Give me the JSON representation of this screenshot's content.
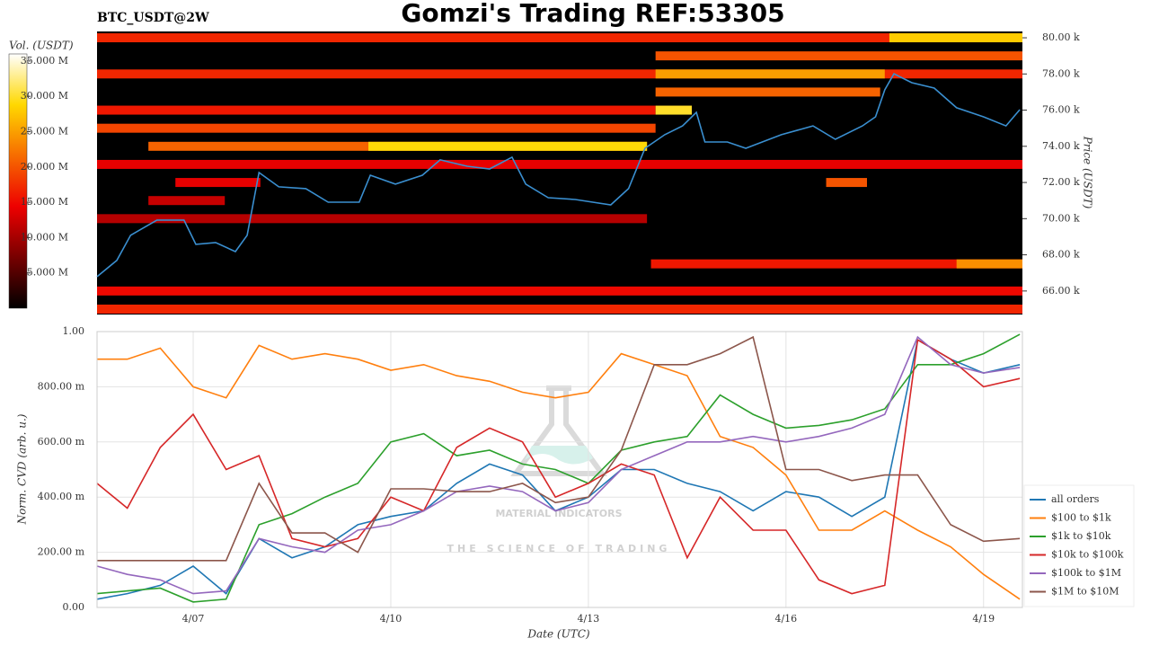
{
  "chart_data": [
    {
      "type": "heatmap",
      "title": "Gomzi's Trading REF:53305",
      "subtitle": "BTC_USDT@2W",
      "y_label": "Price (USDT)",
      "colorbar_label": "Vol. (USDT)",
      "xlim": [
        5.54,
        19.59
      ],
      "ylim": [
        64.7,
        80.35
      ],
      "yticks": [
        {
          "value": 66,
          "label": "66.00 k"
        },
        {
          "value": 68,
          "label": "68.00 k"
        },
        {
          "value": 70,
          "label": "70.00 k"
        },
        {
          "value": 72,
          "label": "72.00 k"
        },
        {
          "value": 74,
          "label": "74.00 k"
        },
        {
          "value": 76,
          "label": "76.00 k"
        },
        {
          "value": 78,
          "label": "78.00 k"
        },
        {
          "value": 80,
          "label": "80.00 k"
        }
      ],
      "clim": [
        0,
        36
      ],
      "cticks": [
        {
          "value": 5,
          "label": "5.000 M"
        },
        {
          "value": 10,
          "label": "10.000 M"
        },
        {
          "value": 15,
          "label": "15.000 M"
        },
        {
          "value": 20,
          "label": "20.000 M"
        },
        {
          "value": 25,
          "label": "25.000 M"
        },
        {
          "value": 30,
          "label": "30.000 M"
        },
        {
          "value": 35,
          "label": "35.000 M"
        }
      ],
      "bands": [
        {
          "price": 80,
          "x0": 5.54,
          "x1": 19.59,
          "value": 17
        },
        {
          "price": 80,
          "x0": 17.57,
          "x1": 19.59,
          "value": 28
        },
        {
          "price": 79,
          "x0": 14.02,
          "x1": 19.59,
          "value": 20
        },
        {
          "price": 78,
          "x0": 5.54,
          "x1": 19.59,
          "value": 17
        },
        {
          "price": 78,
          "x0": 14.02,
          "x1": 17.5,
          "value": 25
        },
        {
          "price": 77,
          "x0": 14.02,
          "x1": 17.43,
          "value": 21
        },
        {
          "price": 76,
          "x0": 5.54,
          "x1": 14.02,
          "value": 16
        },
        {
          "price": 76,
          "x0": 14.02,
          "x1": 14.57,
          "value": 30
        },
        {
          "price": 75,
          "x0": 5.54,
          "x1": 14.02,
          "value": 19
        },
        {
          "price": 74,
          "x0": 6.32,
          "x1": 13.89,
          "value": 21
        },
        {
          "price": 74,
          "x0": 9.66,
          "x1": 13.89,
          "value": 29
        },
        {
          "price": 73,
          "x0": 5.54,
          "x1": 19.59,
          "value": 14
        },
        {
          "price": 72,
          "x0": 6.73,
          "x1": 8.02,
          "value": 14
        },
        {
          "price": 72,
          "x0": 16.61,
          "x1": 17.23,
          "value": 20
        },
        {
          "price": 71,
          "x0": 6.32,
          "x1": 7.48,
          "value": 12
        },
        {
          "price": 70,
          "x0": 5.54,
          "x1": 13.89,
          "value": 11
        },
        {
          "price": 67.5,
          "x0": 13.95,
          "x1": 19.59,
          "value": 16
        },
        {
          "price": 67.5,
          "x0": 18.59,
          "x1": 19.59,
          "value": 24
        },
        {
          "price": 66,
          "x0": 5.54,
          "x1": 19.59,
          "value": 15
        },
        {
          "price": 65,
          "x0": 5.54,
          "x1": 19.59,
          "value": 17
        }
      ],
      "price_line": {
        "color": "#3a8fd0",
        "x": [
          5.54,
          5.84,
          6.05,
          6.45,
          6.86,
          7.04,
          7.34,
          7.64,
          7.82,
          8.0,
          8.3,
          8.71,
          9.05,
          9.52,
          9.69,
          10.07,
          10.48,
          10.75,
          11.16,
          11.5,
          11.84,
          12.05,
          12.39,
          12.8,
          13.34,
          13.61,
          13.86,
          14.16,
          14.43,
          14.64,
          14.77,
          15.11,
          15.39,
          15.93,
          16.41,
          16.75,
          17.16,
          17.36,
          17.5,
          17.64,
          17.91,
          18.25,
          18.59,
          19.0,
          19.34,
          19.55
        ],
        "values": [
          66.79,
          67.69,
          69.08,
          69.92,
          69.92,
          68.58,
          68.68,
          68.18,
          69.08,
          72.55,
          71.76,
          71.66,
          70.91,
          70.91,
          72.4,
          71.91,
          72.4,
          73.25,
          72.9,
          72.75,
          73.4,
          71.91,
          71.16,
          71.06,
          70.76,
          71.66,
          73.89,
          74.64,
          75.13,
          75.88,
          74.24,
          74.24,
          73.89,
          74.64,
          75.13,
          74.39,
          75.13,
          75.63,
          77.12,
          78.01,
          77.52,
          77.22,
          76.13,
          75.63,
          75.13,
          76.03
        ]
      }
    },
    {
      "type": "line",
      "x_label": "Date (UTC)",
      "y_label": "Norm. CVD (arb. u.)",
      "xlim": [
        5.54,
        19.59
      ],
      "ylim": [
        0,
        1
      ],
      "xticks": [
        {
          "value": 7,
          "label": "4/07"
        },
        {
          "value": 10,
          "label": "4/10"
        },
        {
          "value": 13,
          "label": "4/13"
        },
        {
          "value": 16,
          "label": "4/16"
        },
        {
          "value": 19,
          "label": "4/19"
        }
      ],
      "yticks": [
        {
          "value": 0,
          "label": "0.00"
        },
        {
          "value": 0.2,
          "label": "200.00 m"
        },
        {
          "value": 0.4,
          "label": "400.00 m"
        },
        {
          "value": 0.6,
          "label": "600.00 m"
        },
        {
          "value": 0.8,
          "label": "800.00 m"
        },
        {
          "value": 1,
          "label": "1.00"
        }
      ],
      "grid": true,
      "legend": "right",
      "watermark": [
        "MATERIAL INDICATORS",
        "THE SCIENCE OF TRADING"
      ],
      "x": [
        5.54,
        6,
        6.5,
        7,
        7.5,
        8,
        8.5,
        9,
        9.5,
        10,
        10.5,
        11,
        11.5,
        12,
        12.5,
        13,
        13.5,
        14,
        14.5,
        15,
        15.5,
        16,
        16.5,
        17,
        17.5,
        18,
        18.5,
        19,
        19.55
      ],
      "series": [
        {
          "name": "all orders",
          "color": "#1f77b4",
          "values": [
            0.03,
            0.05,
            0.08,
            0.15,
            0.05,
            0.25,
            0.18,
            0.22,
            0.3,
            0.33,
            0.35,
            0.45,
            0.52,
            0.48,
            0.35,
            0.4,
            0.5,
            0.5,
            0.45,
            0.42,
            0.35,
            0.42,
            0.4,
            0.33,
            0.4,
            0.97,
            0.9,
            0.85,
            0.88
          ]
        },
        {
          "name": "$100 to $1k",
          "color": "#ff7f0e",
          "values": [
            0.9,
            0.9,
            0.94,
            0.8,
            0.76,
            0.95,
            0.9,
            0.92,
            0.9,
            0.86,
            0.88,
            0.84,
            0.82,
            0.78,
            0.76,
            0.78,
            0.92,
            0.88,
            0.84,
            0.62,
            0.58,
            0.48,
            0.28,
            0.28,
            0.35,
            0.28,
            0.22,
            0.12,
            0.03
          ]
        },
        {
          "name": "$1k to $10k",
          "color": "#2ca02c",
          "values": [
            0.05,
            0.06,
            0.07,
            0.02,
            0.03,
            0.3,
            0.34,
            0.4,
            0.45,
            0.6,
            0.63,
            0.55,
            0.57,
            0.52,
            0.5,
            0.45,
            0.57,
            0.6,
            0.62,
            0.77,
            0.7,
            0.65,
            0.66,
            0.68,
            0.72,
            0.88,
            0.88,
            0.92,
            0.99
          ]
        },
        {
          "name": "$10k to $100k",
          "color": "#d62728",
          "values": [
            0.45,
            0.36,
            0.58,
            0.7,
            0.5,
            0.55,
            0.25,
            0.22,
            0.25,
            0.4,
            0.35,
            0.58,
            0.65,
            0.6,
            0.4,
            0.45,
            0.52,
            0.48,
            0.18,
            0.4,
            0.28,
            0.28,
            0.1,
            0.05,
            0.08,
            0.97,
            0.9,
            0.8,
            0.83
          ]
        },
        {
          "name": "$100k to $1M",
          "color": "#9467bd",
          "values": [
            0.15,
            0.12,
            0.1,
            0.05,
            0.06,
            0.25,
            0.22,
            0.2,
            0.28,
            0.3,
            0.35,
            0.42,
            0.44,
            0.42,
            0.35,
            0.38,
            0.5,
            0.55,
            0.6,
            0.6,
            0.62,
            0.6,
            0.62,
            0.65,
            0.7,
            0.98,
            0.88,
            0.85,
            0.87
          ]
        },
        {
          "name": "$1M to $10M",
          "color": "#8c564b",
          "values": [
            0.17,
            0.17,
            0.17,
            0.17,
            0.17,
            0.45,
            0.27,
            0.27,
            0.2,
            0.43,
            0.43,
            0.42,
            0.42,
            0.45,
            0.38,
            0.4,
            0.57,
            0.88,
            0.88,
            0.92,
            0.98,
            0.5,
            0.5,
            0.46,
            0.48,
            0.48,
            0.3,
            0.24,
            0.25
          ]
        }
      ]
    }
  ]
}
